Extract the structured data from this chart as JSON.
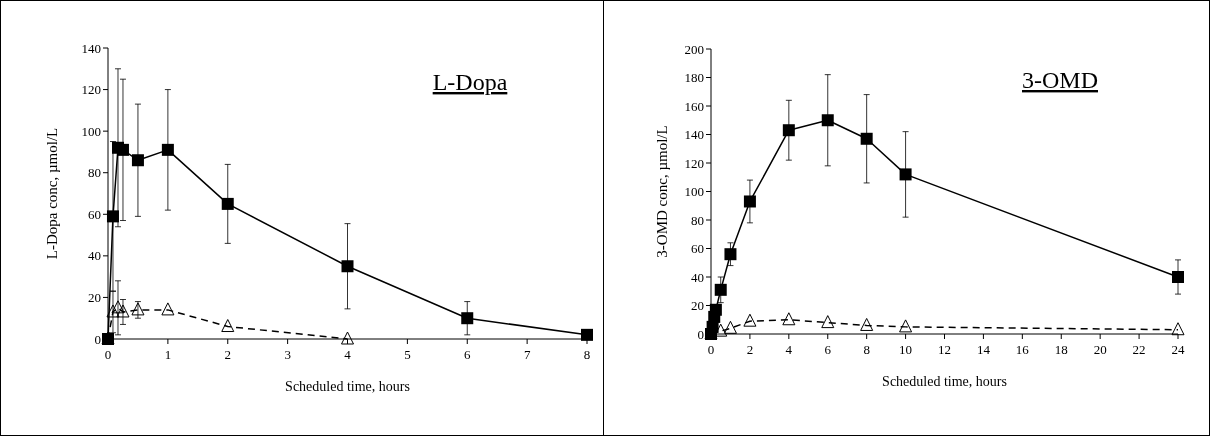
{
  "chart_data": [
    {
      "type": "line",
      "title": "L-Dopa",
      "xlabel": "Scheduled time, hours",
      "ylabel": "L-Dopa conc, µmol/L",
      "xlim": [
        0,
        8
      ],
      "xticks": [
        0,
        1,
        2,
        3,
        4,
        5,
        6,
        7,
        8
      ],
      "ylim": [
        0,
        140
      ],
      "yticks": [
        0,
        20,
        40,
        60,
        80,
        100,
        120,
        140
      ],
      "series": [
        {
          "color": "#000000",
          "marker": "square",
          "line_style": "solid",
          "x": [
            0,
            0.083,
            0.167,
            0.25,
            0.5,
            1,
            2,
            4,
            6,
            8
          ],
          "values": [
            0,
            59,
            92,
            91,
            86,
            91,
            65,
            35,
            10,
            2
          ],
          "errors": [
            null,
            36,
            38,
            34,
            27,
            29,
            19,
            20.5,
            8,
            null
          ]
        },
        {
          "color": "#000000",
          "marker": "triangle",
          "line_style": "dashed",
          "x": [
            0,
            0.083,
            0.167,
            0.25,
            0.5,
            1,
            2,
            4
          ],
          "values": [
            0,
            13,
            15,
            13,
            14,
            14,
            6,
            0
          ],
          "errors": [
            null,
            10,
            13,
            6,
            4,
            null,
            null,
            null
          ]
        }
      ]
    },
    {
      "type": "line",
      "title": "3-OMD",
      "xlabel": "Scheduled time, hours",
      "ylabel": "3-OMD conc, µmol/L",
      "xlim": [
        0,
        24
      ],
      "xticks": [
        0,
        2,
        4,
        6,
        8,
        10,
        12,
        14,
        16,
        18,
        20,
        22,
        24
      ],
      "ylim": [
        0,
        200
      ],
      "yticks": [
        0,
        20,
        40,
        60,
        80,
        100,
        120,
        140,
        160,
        180,
        200
      ],
      "series": [
        {
          "color": "#000000",
          "marker": "square",
          "line_style": "solid",
          "x": [
            0,
            0.083,
            0.167,
            0.25,
            0.5,
            1,
            2,
            4,
            6,
            8,
            10,
            24
          ],
          "values": [
            0,
            5,
            12,
            17,
            31,
            56,
            93,
            143,
            150,
            137,
            112,
            40
          ],
          "errors": [
            null,
            null,
            null,
            null,
            9,
            8,
            15,
            21,
            32,
            31,
            30,
            12
          ]
        },
        {
          "color": "#000000",
          "marker": "triangle",
          "line_style": "dashed",
          "x": [
            0,
            0.5,
            1,
            2,
            4,
            6,
            8,
            10,
            24
          ],
          "values": [
            0,
            2,
            4,
            9,
            10,
            8,
            6,
            5,
            3
          ],
          "errors": [
            null,
            null,
            null,
            null,
            null,
            null,
            null,
            null,
            null
          ]
        }
      ]
    }
  ]
}
